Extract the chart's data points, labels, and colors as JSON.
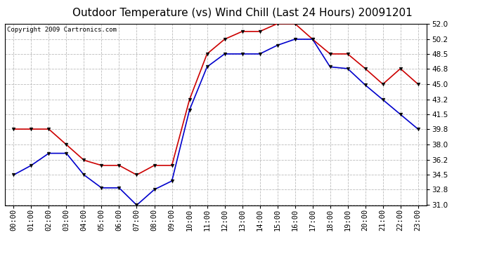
{
  "title": "Outdoor Temperature (vs) Wind Chill (Last 24 Hours) 20091201",
  "copyright": "Copyright 2009 Cartronics.com",
  "hours": [
    "00:00",
    "01:00",
    "02:00",
    "03:00",
    "04:00",
    "05:00",
    "06:00",
    "07:00",
    "08:00",
    "09:00",
    "10:00",
    "11:00",
    "12:00",
    "13:00",
    "14:00",
    "15:00",
    "16:00",
    "17:00",
    "18:00",
    "19:00",
    "20:00",
    "21:00",
    "22:00",
    "23:00"
  ],
  "temp": [
    39.8,
    39.8,
    39.8,
    38.0,
    36.2,
    35.6,
    35.6,
    34.5,
    35.6,
    35.6,
    43.2,
    48.5,
    50.2,
    51.1,
    51.1,
    52.0,
    52.0,
    50.2,
    48.5,
    48.5,
    46.8,
    45.0,
    46.8,
    45.0
  ],
  "windchill": [
    34.5,
    35.6,
    37.0,
    37.0,
    34.5,
    33.0,
    33.0,
    31.0,
    32.8,
    33.8,
    42.0,
    47.0,
    48.5,
    48.5,
    48.5,
    49.5,
    50.2,
    50.2,
    47.0,
    46.8,
    44.9,
    43.2,
    41.5,
    39.8
  ],
  "temp_color": "#cc0000",
  "windchill_color": "#0000cc",
  "bg_color": "#ffffff",
  "plot_bg_color": "#ffffff",
  "grid_color": "#bbbbbb",
  "ylim_min": 31.0,
  "ylim_max": 52.0,
  "yticks": [
    31.0,
    32.8,
    34.5,
    36.2,
    38.0,
    39.8,
    41.5,
    43.2,
    45.0,
    46.8,
    48.5,
    50.2,
    52.0
  ],
  "title_fontsize": 11,
  "tick_fontsize": 7.5,
  "copyright_fontsize": 6.5
}
